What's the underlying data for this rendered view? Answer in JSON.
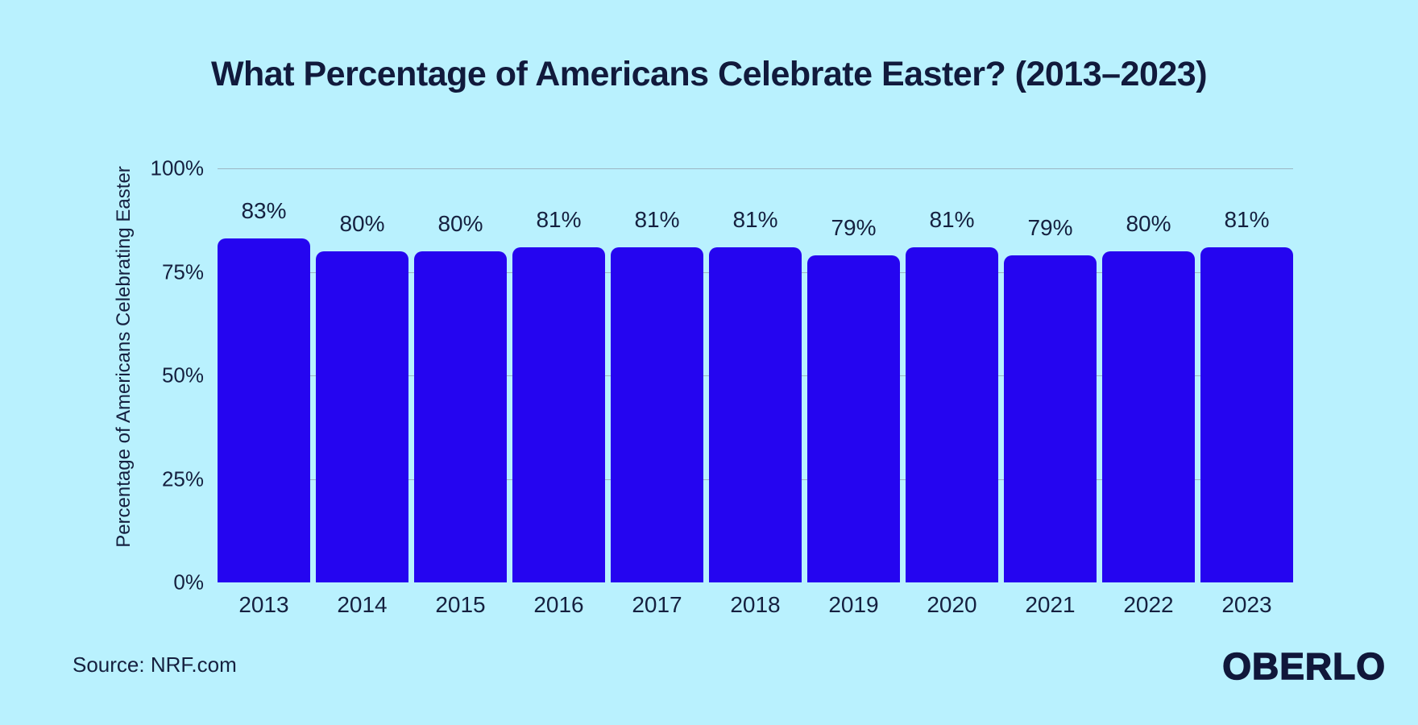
{
  "title": "What Percentage of Americans Celebrate Easter? (2013–2023)",
  "source": "Source: NRF.com",
  "brand": "OBERLO",
  "colors": {
    "background": "#b9f1fe",
    "bar": "#2505f0",
    "text": "#15203f",
    "gridline": "#9cb6c4"
  },
  "chart_data": {
    "type": "bar",
    "title": "What Percentage of Americans Celebrate Easter? (2013–2023)",
    "categories": [
      "2013",
      "2014",
      "2015",
      "2016",
      "2017",
      "2018",
      "2019",
      "2020",
      "2021",
      "2022",
      "2023"
    ],
    "values": [
      83,
      80,
      80,
      81,
      81,
      81,
      79,
      81,
      79,
      80,
      81
    ],
    "value_labels": [
      "83%",
      "80%",
      "80%",
      "81%",
      "81%",
      "81%",
      "79%",
      "81%",
      "79%",
      "80%",
      "81%"
    ],
    "xlabel": "",
    "ylabel": "Percentage of Americans Celebrating Easter",
    "ylim": [
      0,
      100
    ],
    "yticks": [
      0,
      25,
      50,
      75,
      100
    ],
    "ytick_labels": [
      "0%",
      "25%",
      "50%",
      "75%",
      "100%"
    ],
    "grid": true,
    "legend": false
  }
}
